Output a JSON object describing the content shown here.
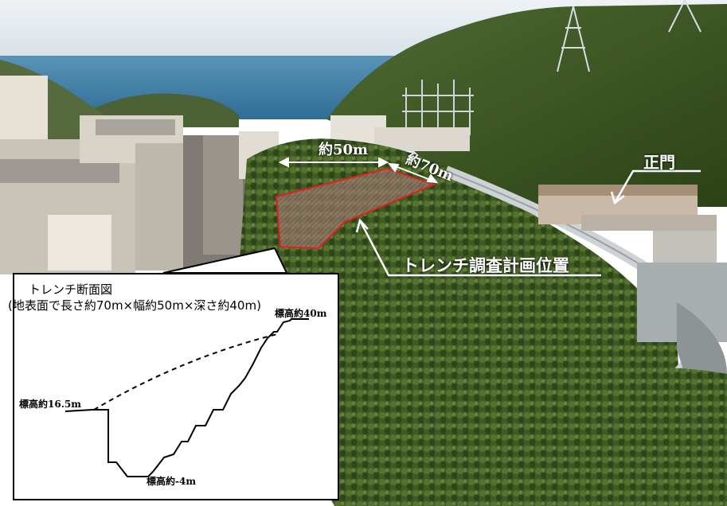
{
  "labels": {
    "width_label": "約50m",
    "length_label": "約70m",
    "gate_label": "正門",
    "trench_plan_label": "トレンチ調査計画位置"
  },
  "inset": {
    "title": "トレンチ断面図",
    "subtitle": "(地表面で長さ約70m×幅約50m×深さ約40m)",
    "elev_top": "標高約40m",
    "elev_left": "標高約16.5m",
    "elev_bottom": "標高約-4m"
  },
  "colors": {
    "sea": "#3f7fa8",
    "sky": "#dfe7ee",
    "forest": "#3c5a22",
    "trench_outline": "#e02020",
    "label_text": "#ffffff"
  }
}
